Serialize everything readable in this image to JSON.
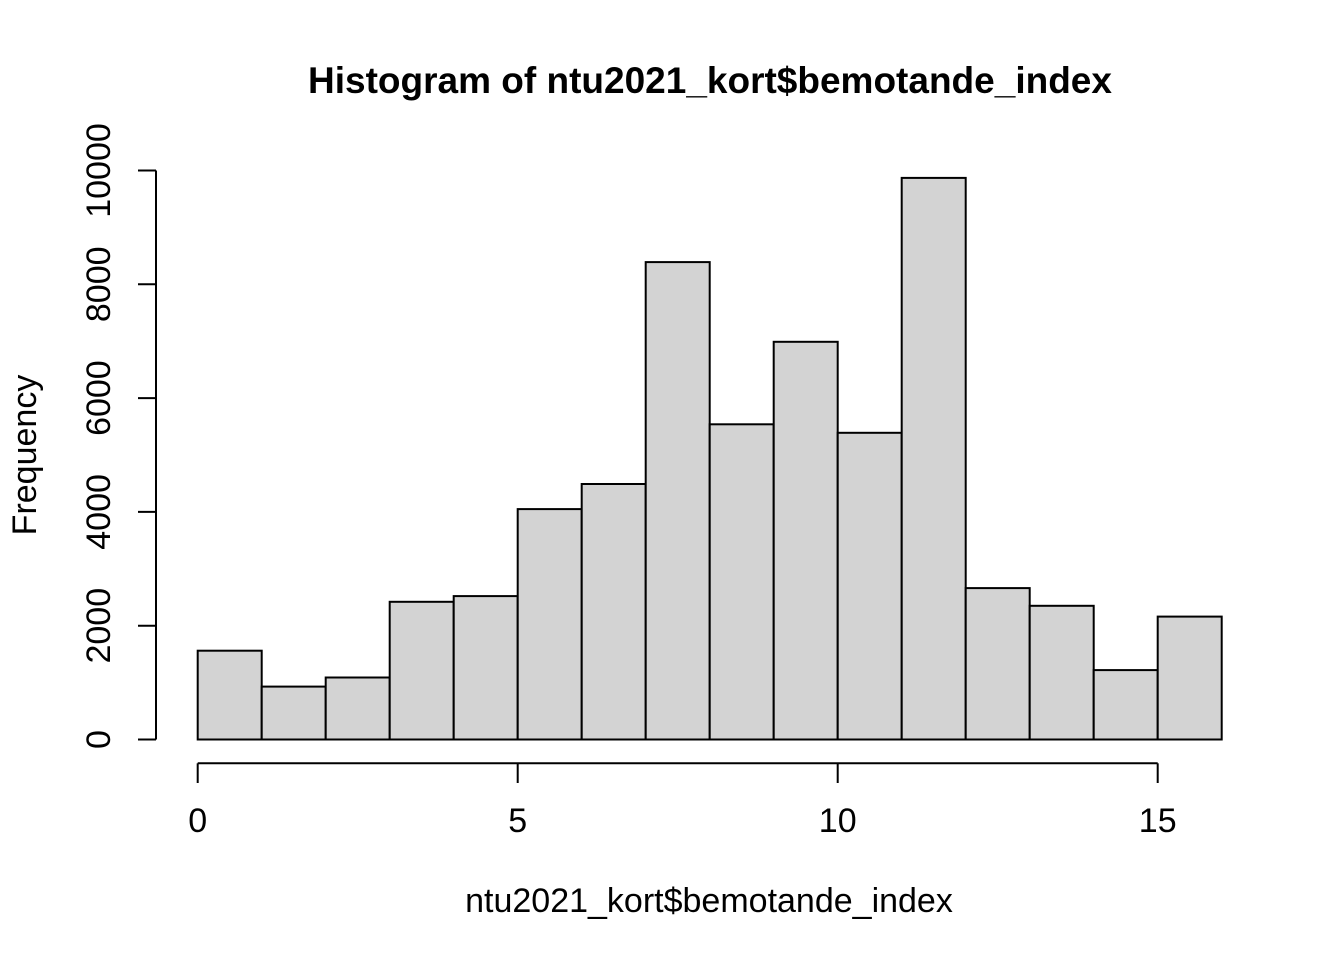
{
  "chart_data": {
    "type": "bar",
    "subtype": "histogram",
    "title": "Histogram of ntu2021_kort$bemotande_index",
    "xlabel": "ntu2021_kort$bemotande_index",
    "ylabel": "Frequency",
    "bin_edges": [
      0,
      1,
      2,
      3,
      4,
      5,
      6,
      7,
      8,
      9,
      10,
      11,
      12,
      13,
      14,
      15,
      16
    ],
    "counts": [
      1560,
      930,
      1090,
      2420,
      2520,
      4050,
      4490,
      8390,
      5540,
      6990,
      5390,
      9870,
      2660,
      2350,
      1220,
      2160
    ],
    "x_ticks": [
      0,
      5,
      10,
      15
    ],
    "x_tick_labels": [
      "0",
      "5",
      "10",
      "15"
    ],
    "y_ticks": [
      0,
      2000,
      4000,
      6000,
      8000,
      10000
    ],
    "y_tick_labels": [
      "0",
      "2000",
      "4000",
      "6000",
      "8000",
      "10000"
    ],
    "xlim": [
      0,
      16
    ],
    "ylim": [
      0,
      10000
    ],
    "grid": false,
    "legend": null,
    "background": "#ffffff",
    "bar_fill": "#d3d3d3",
    "bar_stroke": "#000000",
    "axis_color": "#000000",
    "text_color": "#000000"
  }
}
